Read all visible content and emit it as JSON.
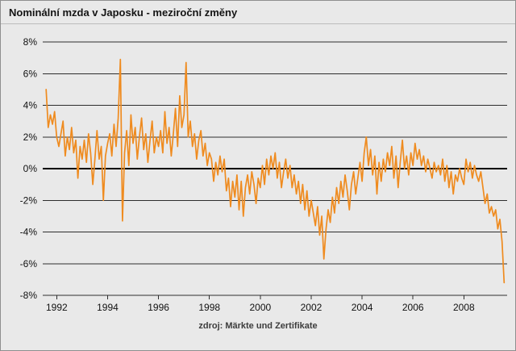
{
  "title": "Nominální mzda v Japosku - meziroční změny",
  "source": "zdroj: Märkte und Zertifikate",
  "chart_data": {
    "type": "line",
    "title": "Nominální mzda v Japosku - meziroční změny",
    "x_start": 1991.583,
    "x_step": 0.083333,
    "values": [
      5.0,
      2.6,
      3.4,
      2.8,
      3.6,
      2.0,
      1.4,
      2.2,
      3.0,
      0.8,
      2.0,
      1.2,
      2.6,
      1.0,
      1.8,
      -0.6,
      1.4,
      0.6,
      1.8,
      0.4,
      2.2,
      1.0,
      -1.0,
      0.6,
      2.4,
      0.6,
      1.4,
      -2.0,
      0.8,
      1.6,
      2.2,
      0.8,
      2.8,
      1.4,
      3.2,
      6.9,
      -3.3,
      1.0,
      2.4,
      0.2,
      3.4,
      1.6,
      2.6,
      0.6,
      2.0,
      3.2,
      1.2,
      2.2,
      0.4,
      1.8,
      3.0,
      1.0,
      2.0,
      1.4,
      2.4,
      1.0,
      3.6,
      1.6,
      2.6,
      0.8,
      2.2,
      3.8,
      1.4,
      4.6,
      2.6,
      3.4,
      6.7,
      2.0,
      3.0,
      1.4,
      2.2,
      0.6,
      1.8,
      2.4,
      0.8,
      1.6,
      0.2,
      1.0,
      0.6,
      -0.8,
      0.4,
      -0.4,
      0.8,
      -0.2,
      0.6,
      -1.4,
      -0.6,
      -2.4,
      -0.8,
      -1.8,
      -0.4,
      -2.6,
      -0.8,
      -3.0,
      -1.2,
      -0.4,
      -1.6,
      -0.2,
      -1.0,
      -2.2,
      -0.6,
      -1.2,
      0.2,
      -1.0,
      0.6,
      -0.4,
      0.8,
      0.0,
      1.0,
      -0.6,
      0.4,
      -1.2,
      -0.2,
      0.6,
      -0.6,
      0.2,
      -1.2,
      -0.4,
      -1.6,
      -0.8,
      -2.2,
      -1.0,
      -2.6,
      -1.4,
      -3.0,
      -2.0,
      -2.8,
      -3.6,
      -2.4,
      -4.2,
      -3.0,
      -5.7,
      -3.8,
      -2.6,
      -3.4,
      -1.8,
      -2.8,
      -1.2,
      -2.2,
      -0.8,
      -1.8,
      -0.4,
      -1.4,
      -2.6,
      -1.0,
      -0.2,
      -1.6,
      -0.6,
      0.4,
      -0.8,
      1.0,
      2.0,
      0.2,
      1.2,
      -0.4,
      0.8,
      -1.6,
      0.4,
      -0.8,
      0.6,
      -0.2,
      1.0,
      0.2,
      1.4,
      -0.6,
      0.8,
      -1.2,
      0.4,
      1.8,
      0.0,
      0.8,
      -0.4,
      1.0,
      0.2,
      1.6,
      0.6,
      1.2,
      0.2,
      0.8,
      -0.2,
      0.6,
      0.0,
      -0.6,
      0.4,
      -0.2,
      0.2,
      -0.4,
      0.6,
      -0.8,
      0.2,
      -1.2,
      -0.2,
      -1.6,
      -0.4,
      -0.8,
      0.0,
      -0.6,
      -1.0,
      0.6,
      -0.2,
      0.4,
      -0.6,
      0.2,
      -0.4,
      -0.8,
      -0.2,
      -1.2,
      -2.2,
      -1.6,
      -2.8,
      -2.4,
      -3.0,
      -2.6,
      -3.8,
      -3.2,
      -4.6,
      -7.2
    ],
    "xlim": [
      1991.45,
      2009.7
    ],
    "ylim": [
      -8,
      8
    ],
    "y_ticks": [
      8,
      6,
      4,
      2,
      0,
      -2,
      -4,
      -6,
      -8
    ],
    "y_tick_suffix": "%",
    "x_ticks": [
      1992,
      1994,
      1996,
      1998,
      2000,
      2002,
      2004,
      2006,
      2008
    ],
    "grid": true,
    "legend": "none",
    "colors": {
      "line": "#ef8b1f",
      "grid": "#2e2e2e",
      "zero_line": "#000000",
      "background": "#e9e9e9"
    }
  }
}
